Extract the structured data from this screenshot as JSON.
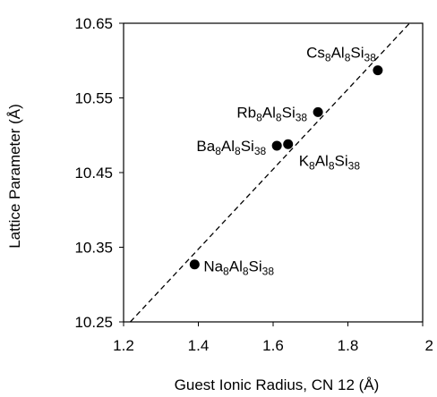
{
  "chart_data": {
    "type": "scatter",
    "title": "",
    "xlabel": "Guest Ionic Radius, CN 12 (Å)",
    "ylabel": "Lattice Parameter (Å)",
    "xlim": [
      1.2,
      2.0
    ],
    "ylim": [
      10.25,
      10.65
    ],
    "xticks": [
      "1.2",
      "1.4",
      "1.6",
      "1.8",
      "2"
    ],
    "yticks": [
      "10.25",
      "10.35",
      "10.45",
      "10.55",
      "10.65"
    ],
    "grid": false,
    "legend": "none",
    "points": [
      {
        "x": 1.39,
        "y": 10.327,
        "label_parts": [
          [
            "Na",
            ""
          ],
          [
            "8",
            "sub"
          ],
          [
            "Al",
            ""
          ],
          [
            "8",
            "sub"
          ],
          [
            "Si",
            ""
          ],
          [
            "38",
            "sub"
          ]
        ],
        "label_pos": "right"
      },
      {
        "x": 1.61,
        "y": 10.486,
        "label_parts": [
          [
            "Ba",
            ""
          ],
          [
            "8",
            "sub"
          ],
          [
            "Al",
            ""
          ],
          [
            "8",
            "sub"
          ],
          [
            "Si",
            ""
          ],
          [
            "38",
            "sub"
          ]
        ],
        "label_pos": "left"
      },
      {
        "x": 1.64,
        "y": 10.488,
        "label_parts": [
          [
            "K",
            ""
          ],
          [
            "8",
            "sub"
          ],
          [
            "Al",
            ""
          ],
          [
            "8",
            "sub"
          ],
          [
            "Si",
            ""
          ],
          [
            "38",
            "sub"
          ]
        ],
        "label_pos": "below-right"
      },
      {
        "x": 1.72,
        "y": 10.531,
        "label_parts": [
          [
            "Rb",
            ""
          ],
          [
            "8",
            "sub"
          ],
          [
            "Al",
            ""
          ],
          [
            "8",
            "sub"
          ],
          [
            "Si",
            ""
          ],
          [
            "38",
            "sub"
          ]
        ],
        "label_pos": "left"
      },
      {
        "x": 1.88,
        "y": 10.587,
        "label_parts": [
          [
            "Cs",
            ""
          ],
          [
            "8",
            "sub"
          ],
          [
            "Al",
            ""
          ],
          [
            "8",
            "sub"
          ],
          [
            "Si",
            ""
          ],
          [
            "38",
            "sub"
          ]
        ],
        "label_pos": "above-left"
      }
    ],
    "trendline": {
      "style": "dashed",
      "from": [
        1.218,
        10.25
      ],
      "to": [
        1.965,
        10.65
      ]
    }
  }
}
